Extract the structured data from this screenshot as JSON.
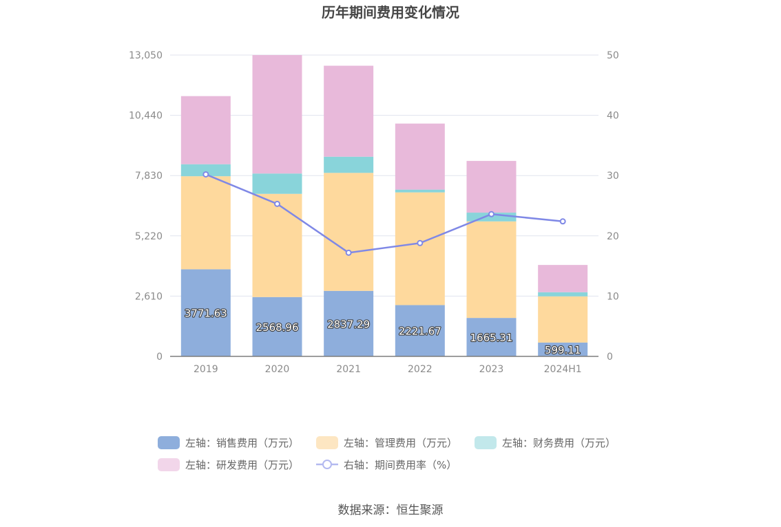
{
  "chart_data": {
    "type": "bar",
    "title": "历年期间费用变化情况",
    "categories": [
      "2019",
      "2020",
      "2021",
      "2022",
      "2023",
      "2024H1"
    ],
    "series": [
      {
        "name": "左轴：销售费用（万元）",
        "axis": "left",
        "type": "bar",
        "color": "#8eaedc",
        "values": [
          3771.63,
          2568.96,
          2837.29,
          2221.67,
          1665.31,
          599.11
        ]
      },
      {
        "name": "左轴：管理费用（万元）",
        "axis": "left",
        "type": "bar",
        "color": "#fed99d",
        "values": [
          4030,
          4470,
          5110,
          4880,
          4180,
          2000
        ]
      },
      {
        "name": "左轴：财务费用（万元）",
        "axis": "left",
        "type": "bar",
        "color": "#89d4da",
        "values": [
          520,
          880,
          700,
          120,
          380,
          180
        ]
      },
      {
        "name": "左轴：研发费用（万元）",
        "axis": "left",
        "type": "bar",
        "color": "#e8b9da",
        "values": [
          2950,
          5130,
          3940,
          2860,
          2240,
          1180
        ]
      },
      {
        "name": "右轴：期间费用率（%）",
        "axis": "right",
        "type": "line",
        "color": "#7f88e6",
        "values": [
          30.2,
          25.3,
          17.2,
          18.8,
          23.6,
          22.4
        ]
      }
    ],
    "bar_labels": [
      "3771.63",
      "2568.96",
      "2837.29",
      "2221.67",
      "1665.31",
      "599.11"
    ],
    "left_axis": {
      "min": 0,
      "max": 13050,
      "ticks": [
        "0",
        "2,610",
        "5,220",
        "7,830",
        "10,440",
        "13,050"
      ]
    },
    "right_axis": {
      "min": 0,
      "max": 50,
      "ticks": [
        "0",
        "10",
        "20",
        "30",
        "40",
        "50"
      ]
    },
    "grid": true,
    "legend_position": "bottom"
  },
  "source": "数据来源：恒生聚源"
}
